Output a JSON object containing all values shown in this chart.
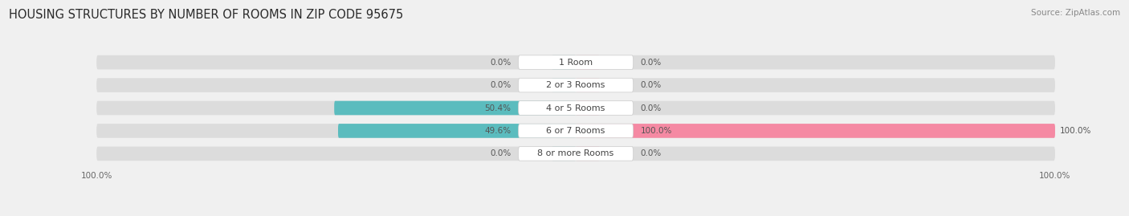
{
  "title": "HOUSING STRUCTURES BY NUMBER OF ROOMS IN ZIP CODE 95675",
  "source": "Source: ZipAtlas.com",
  "categories": [
    "1 Room",
    "2 or 3 Rooms",
    "4 or 5 Rooms",
    "6 or 7 Rooms",
    "8 or more Rooms"
  ],
  "owner_values": [
    0.0,
    0.0,
    50.4,
    49.6,
    0.0
  ],
  "renter_values": [
    0.0,
    0.0,
    0.0,
    100.0,
    0.0
  ],
  "owner_color": "#5bbcbe",
  "renter_color": "#f589a3",
  "bar_bg_color": "#dcdcdc",
  "bar_height": 0.62,
  "title_fontsize": 10.5,
  "source_fontsize": 7.5,
  "value_fontsize": 7.5,
  "category_fontsize": 8.0,
  "axis_label_fontsize": 7.5,
  "background_color": "#f0f0f0",
  "pill_color": "#ffffff",
  "pill_shadow": "#cccccc",
  "value_color": "#555555",
  "cat_color": "#444444",
  "zero_owner_stub": 5.0,
  "zero_renter_stub": 5.0
}
